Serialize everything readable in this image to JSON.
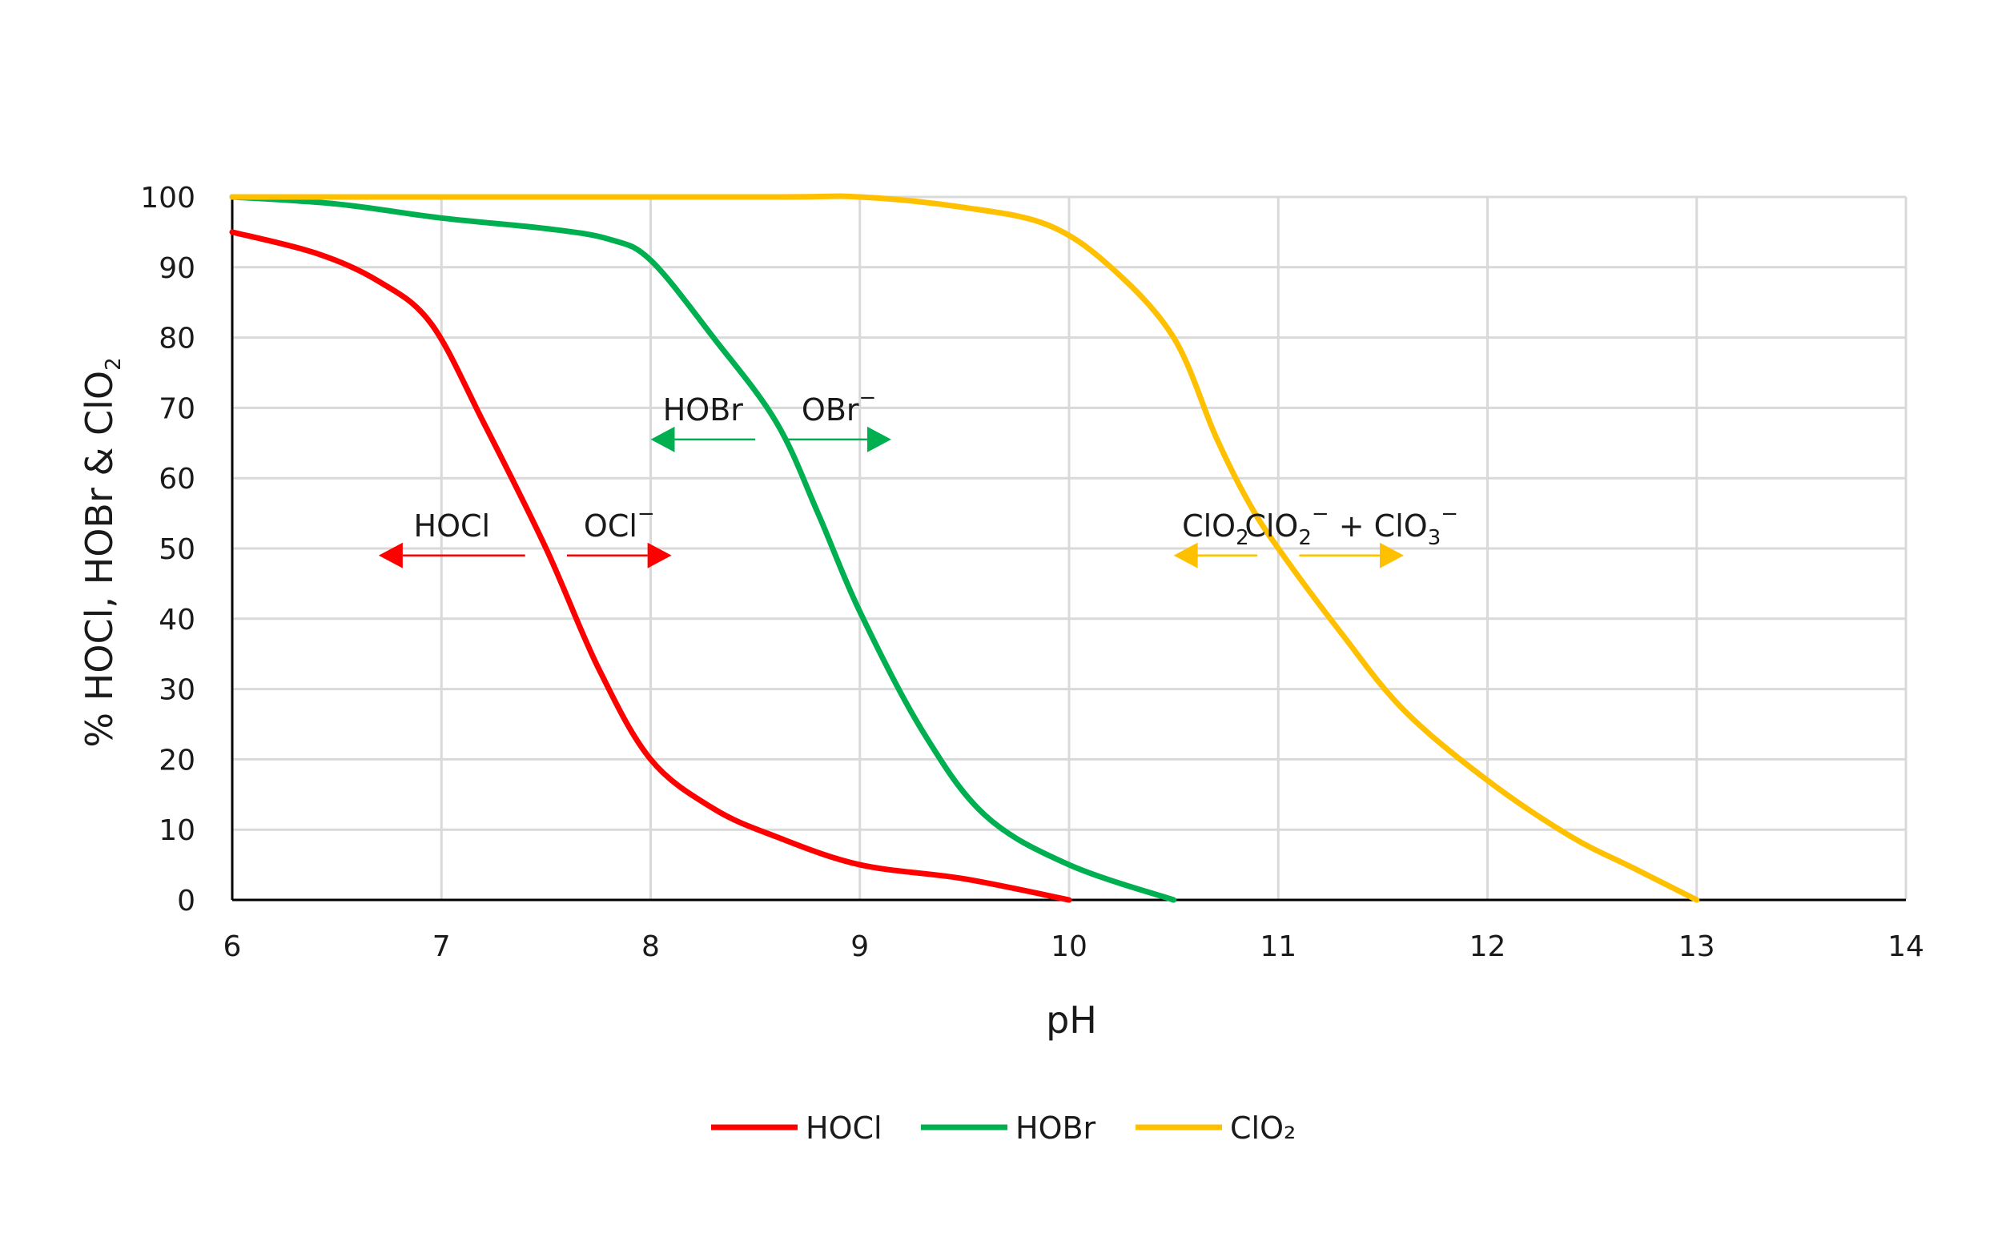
{
  "chart_data": {
    "type": "line",
    "title": "",
    "xlabel": "pH",
    "ylabel": {
      "main": "% HOCl, HOBr & ClO",
      "sub": "2"
    },
    "xlim": [
      6,
      14
    ],
    "ylim": [
      0,
      100
    ],
    "xticks": [
      6,
      7,
      8,
      9,
      10,
      11,
      12,
      13,
      14
    ],
    "yticks": [
      0,
      10,
      20,
      30,
      40,
      50,
      60,
      70,
      80,
      90,
      100
    ],
    "grid": true,
    "legend_position": "bottom",
    "series": [
      {
        "name": "HOCl",
        "color": "#ff0000",
        "x": [
          6,
          6.4,
          6.7,
          6.95,
          7.2,
          7.5,
          7.75,
          8.0,
          8.3,
          8.6,
          9.0,
          9.5,
          10.0
        ],
        "y": [
          95,
          92,
          88,
          82,
          68,
          50,
          33,
          20,
          13,
          9,
          5,
          3,
          0
        ]
      },
      {
        "name": "HOBr",
        "color": "#00b050",
        "x": [
          6,
          6.5,
          7.0,
          7.5,
          7.8,
          8.0,
          8.3,
          8.6,
          8.8,
          9.0,
          9.3,
          9.6,
          10.0,
          10.5
        ],
        "y": [
          100,
          99,
          97,
          95.5,
          94,
          91,
          80,
          68,
          55,
          41,
          24,
          12,
          5,
          0
        ]
      },
      {
        "name": "ClO2",
        "color": "#ffc000",
        "x": [
          6,
          8.5,
          9.0,
          9.5,
          9.9,
          10.2,
          10.5,
          10.7,
          10.85,
          11.0,
          11.3,
          11.6,
          12.0,
          12.4,
          12.7,
          13.0
        ],
        "y": [
          100,
          100,
          100,
          98.5,
          96,
          90,
          80,
          66,
          57,
          50,
          38,
          27,
          17,
          9,
          4.5,
          0
        ]
      }
    ],
    "annotations": [
      {
        "id": "hocl-left",
        "text": "HOCl",
        "sup": "",
        "color": "#ff0000",
        "direction": "left",
        "x0": 7.4,
        "x1": 6.7,
        "y": 49
      },
      {
        "id": "hocl-right",
        "text": "OCl",
        "sup": "−",
        "color": "#ff0000",
        "direction": "right",
        "x0": 7.6,
        "x1": 8.1,
        "y": 49
      },
      {
        "id": "hobr-left",
        "text": "HOBr",
        "sup": "",
        "color": "#00b050",
        "direction": "left",
        "x0": 8.5,
        "x1": 8.0,
        "y": 65.5
      },
      {
        "id": "hobr-right",
        "text": "OBr",
        "sup": "−",
        "color": "#00b050",
        "direction": "right",
        "x0": 8.65,
        "x1": 9.15,
        "y": 65.5
      },
      {
        "id": "clo2-left",
        "text": "ClO",
        "sub": "2",
        "color": "#ffc000",
        "direction": "left",
        "x0": 10.9,
        "x1": 10.5,
        "y": 49
      },
      {
        "id": "clo2-right",
        "text": "ClO",
        "sub": "2",
        "sup": "−",
        "text2": " + ClO",
        "sub2": "3",
        "sup2": "−",
        "color": "#ffc000",
        "direction": "right",
        "x0": 11.1,
        "x1": 11.6,
        "y": 49
      }
    ]
  },
  "legend": [
    {
      "label": "HOCl",
      "color": "#ff0000"
    },
    {
      "label": "HOBr",
      "color": "#00b050"
    },
    {
      "label": "ClO₂",
      "color": "#ffc000"
    }
  ]
}
